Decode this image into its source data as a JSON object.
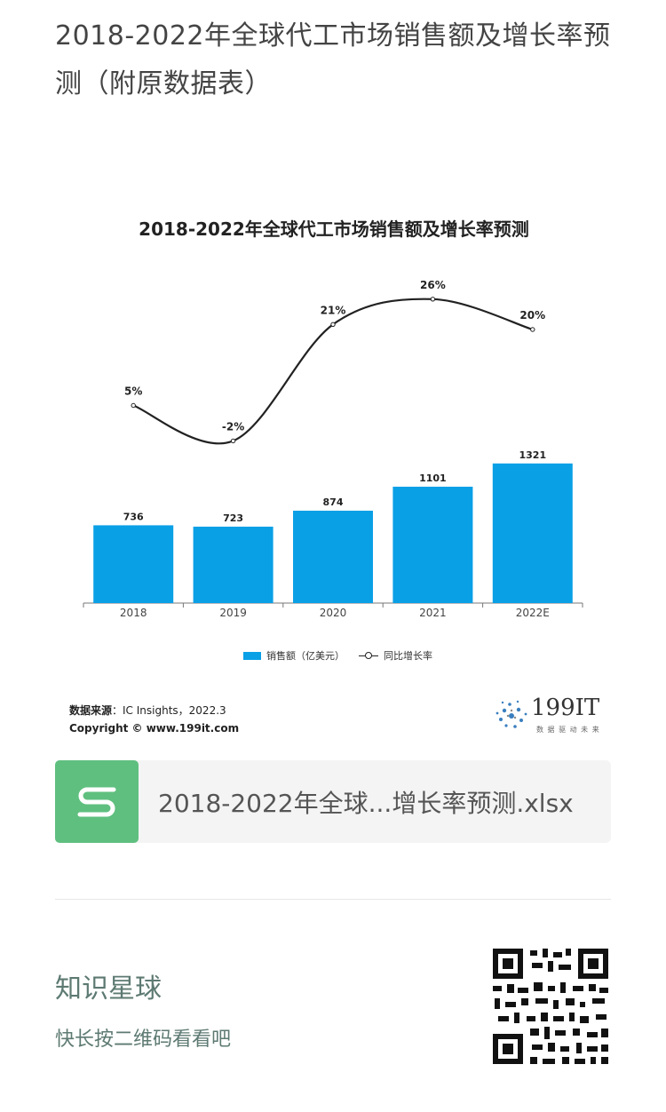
{
  "page_title": "2018-2022年全球代工市场销售额及增长率预测（附原数据表）",
  "chart_data": {
    "type": "bar",
    "title": "2018-2022年全球代工市场销售额及增长率预测",
    "categories": [
      "2018",
      "2019",
      "2020",
      "2021",
      "2022E"
    ],
    "series": [
      {
        "name": "销售额（亿美元）",
        "type": "bar",
        "values": [
          736,
          723,
          874,
          1101,
          1321
        ],
        "color": "#0aa0e6"
      },
      {
        "name": "同比增长率",
        "type": "line",
        "values": [
          5,
          -2,
          21,
          26,
          20
        ],
        "labels": [
          "5%",
          "-2%",
          "21%",
          "26%",
          "20%"
        ],
        "color": "#222222"
      }
    ],
    "legend_position": "bottom",
    "grid": false
  },
  "legend": {
    "bar_label": "销售额（亿美元）",
    "line_label": "同比增长率"
  },
  "source": {
    "label": "数据来源",
    "text": "：IC Insights，2022.3",
    "copyright": "Copyright ©  www.199it.com"
  },
  "brand": {
    "name": "199IT",
    "slogan": "数 据 驱 动 未 来"
  },
  "file": {
    "name": "2018-2022年全球...增长率预测.xlsx",
    "icon": "spreadsheet-s-icon",
    "icon_color": "#5fbf7f"
  },
  "footer": {
    "title": "知识星球",
    "subtitle": "快长按二维码看看吧"
  }
}
